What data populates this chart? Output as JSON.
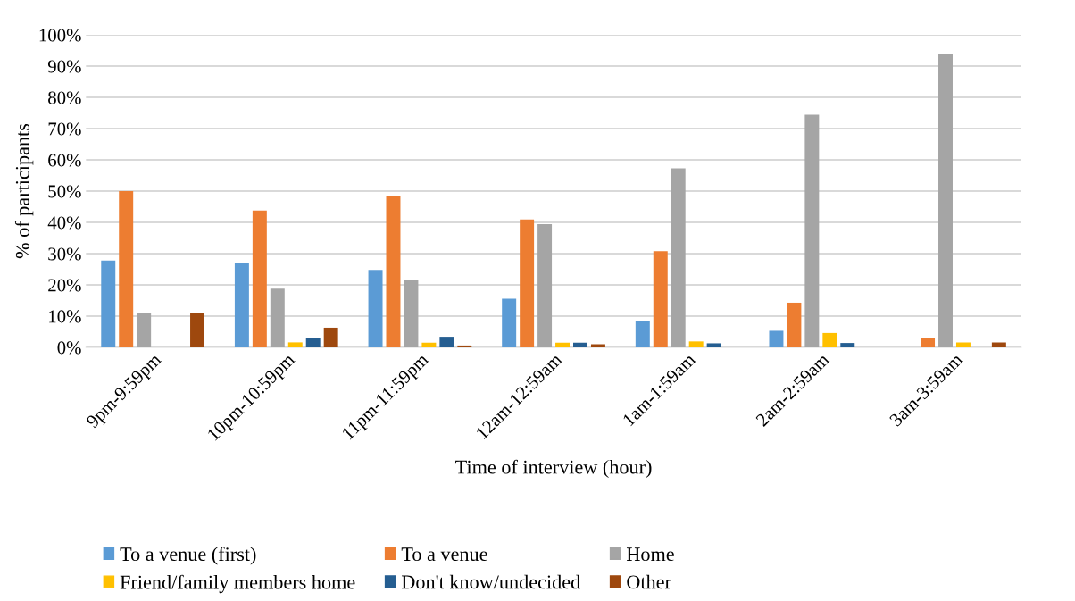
{
  "chart_data": {
    "type": "bar",
    "xlabel": "Time of interview (hour)",
    "ylabel": "% of participants",
    "categories": [
      "9pm-9:59pm",
      "10pm-10:59pm",
      "11pm-11:59pm",
      "12am-12:59am",
      "1am-1:59am",
      "2am-2:59am",
      "3am-3:59am"
    ],
    "series": [
      {
        "name": "To a venue (first)",
        "color": "#5b9bd5",
        "values": [
          27.8,
          26.9,
          24.8,
          15.6,
          8.5,
          5.3,
          0
        ]
      },
      {
        "name": "To a venue",
        "color": "#ed7d31",
        "values": [
          50,
          43.8,
          48.4,
          40.9,
          30.8,
          14.3,
          3.1
        ]
      },
      {
        "name": "Home",
        "color": "#a5a5a5",
        "values": [
          11.1,
          18.8,
          21.4,
          39.4,
          57.3,
          74.4,
          93.8
        ]
      },
      {
        "name": "Friend/family members home",
        "color": "#ffc000",
        "values": [
          0,
          1.6,
          1.5,
          1.5,
          1.9,
          4.6,
          1.6
        ]
      },
      {
        "name": "Don't know/undecided",
        "color": "#255e91",
        "values": [
          0,
          3.1,
          3.4,
          1.5,
          1.3,
          1.4,
          0
        ]
      },
      {
        "name": "Other",
        "color": "#9e480e",
        "values": [
          11.1,
          6.3,
          0.6,
          1.0,
          0,
          0,
          1.6
        ]
      }
    ],
    "ylim": [
      0,
      100
    ],
    "yticks": [
      {
        "value": 0,
        "label": "0%"
      },
      {
        "value": 10,
        "label": "10%"
      },
      {
        "value": 20,
        "label": "20%"
      },
      {
        "value": 30,
        "label": "30%"
      },
      {
        "value": 40,
        "label": "40%"
      },
      {
        "value": 50,
        "label": "50%"
      },
      {
        "value": 60,
        "label": "60%"
      },
      {
        "value": 70,
        "label": "70%"
      },
      {
        "value": 80,
        "label": "80%"
      },
      {
        "value": 90,
        "label": "90%"
      },
      {
        "value": 100,
        "label": "100%"
      }
    ],
    "grid": "y",
    "legend": "bottom"
  }
}
